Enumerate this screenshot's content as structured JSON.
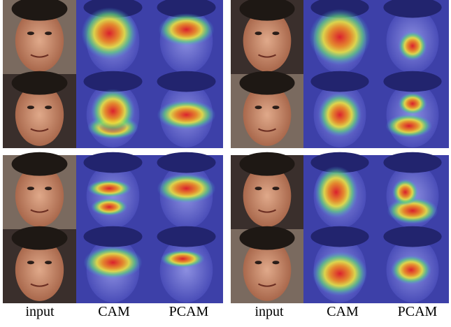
{
  "labels": [
    "input",
    "CAM",
    "PCAM",
    "input",
    "CAM",
    "PCAM"
  ]
}
